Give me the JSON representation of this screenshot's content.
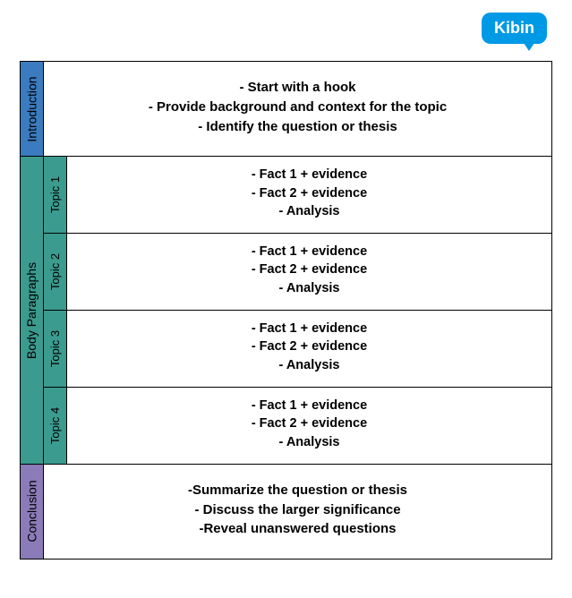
{
  "logo": {
    "text": "Kibin",
    "bg_color": "#0099e5"
  },
  "colors": {
    "intro_bg": "#3b7bbf",
    "body_bg": "#3b9b8f",
    "topic_bg": "#3b9b8f",
    "conclusion_bg": "#8b7bb8",
    "border": "#000000",
    "text": "#000000"
  },
  "sections": {
    "intro": {
      "label": "Introduction",
      "lines": [
        "- Start with a hook",
        "- Provide background and context for the topic",
        "- Identify the question or thesis"
      ]
    },
    "body": {
      "label": "Body Paragraphs",
      "topics": [
        {
          "label": "Topic 1",
          "lines": [
            "- Fact 1 + evidence",
            "- Fact 2 + evidence",
            "- Analysis"
          ]
        },
        {
          "label": "Topic 2",
          "lines": [
            "- Fact 1 + evidence",
            "- Fact 2 + evidence",
            "- Analysis"
          ]
        },
        {
          "label": "Topic 3",
          "lines": [
            "- Fact 1 + evidence",
            "- Fact 2 + evidence",
            "- Analysis"
          ]
        },
        {
          "label": "Topic 4",
          "lines": [
            "- Fact 1 + evidence",
            "- Fact 2 + evidence",
            "- Analysis"
          ]
        }
      ]
    },
    "conclusion": {
      "label": "Conclusion",
      "lines": [
        "-Summarize the question or thesis",
        "- Discuss the larger significance",
        "-Reveal unanswered questions"
      ]
    }
  }
}
